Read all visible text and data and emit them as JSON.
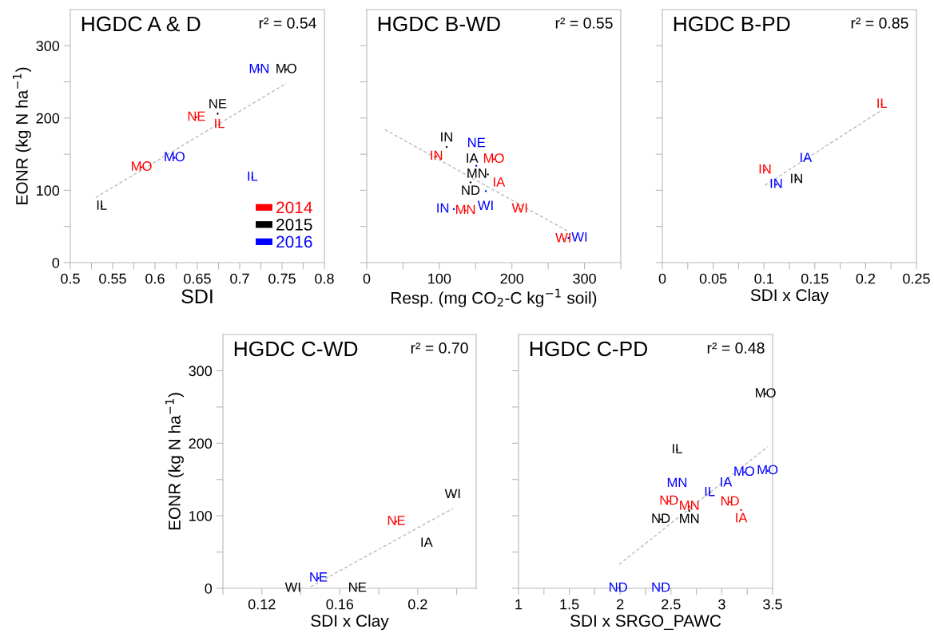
{
  "chart_data": [
    {
      "type": "scatter",
      "title": "HGDC A & D",
      "annotations": [
        "r² = 0.54"
      ],
      "xlabel": "SDI",
      "ylabel": "EONR (kg N ha$^{−1}$)",
      "xlim": [
        0.5,
        0.8
      ],
      "ylim": [
        0,
        350
      ],
      "xticks": [
        0.5,
        {
          "value": 0.525,
          "label": null
        },
        0.55,
        {
          "value": 0.575,
          "label": null
        },
        0.6,
        {
          "value": 0.625,
          "label": null
        },
        0.65,
        {
          "value": 0.675,
          "label": null
        },
        0.7,
        {
          "value": 0.725,
          "label": null
        },
        0.75,
        {
          "value": 0.775,
          "label": null
        },
        0.8
      ],
      "yticks": [
        0,
        {
          "value": 50,
          "label": null
        },
        100,
        {
          "value": 150,
          "label": null
        },
        200,
        {
          "value": 250,
          "label": null
        },
        300
      ],
      "marker": "none",
      "legend": "bottom right",
      "series": [
        {
          "name": "2014",
          "color": "#ff0000",
          "x": [
            0.649,
            0.676,
            0.584
          ],
          "values": [
            201,
            191,
            132
          ],
          "value_labels": [
            "NE",
            "IL",
            "MO"
          ]
        },
        {
          "name": "2015",
          "color": "#000000",
          "x": [
            0.755,
            0.674,
            0.537
          ],
          "values": [
            267,
            206,
            78
          ],
          "value_labels": [
            "MO",
            "NE",
            "IL"
          ]
        },
        {
          "name": "2016",
          "color": "#0000ff",
          "x": [
            0.723,
            0.623,
            0.715
          ],
          "values": [
            267,
            145,
            118
          ],
          "value_labels": [
            "MN",
            "MO",
            "IL"
          ]
        },
        {
          "type": "line",
          "color": "#bbbbbb",
          "line_style": "dashed",
          "x": [
            0.53,
            0.755
          ],
          "values": [
            90,
            248
          ]
        }
      ]
    },
    {
      "type": "scatter",
      "title": "HGDC B-WD",
      "annotations": [
        "r² = 0.55"
      ],
      "xlabel": "Resp. (mg CO$_{2}$-C kg$^{−1}$ soil)",
      "xlim": [
        0,
        350
      ],
      "ylim": [
        0,
        350
      ],
      "xticks": [
        0,
        {
          "value": 50,
          "label": null
        },
        100,
        {
          "value": 150,
          "label": null
        },
        200,
        {
          "value": 250,
          "label": null
        },
        300,
        {
          "value": 350,
          "label": null
        }
      ],
      "yticks": [
        0,
        50,
        100,
        150,
        200,
        250,
        300
      ],
      "tick_labels": "x",
      "marker": "none",
      "series": [
        {
          "color": "#ff0000",
          "x": [
            96,
            175,
            182,
            136,
            211,
            271
          ],
          "values": [
            147,
            143,
            110,
            72,
            74,
            33
          ],
          "value_labels": [
            "IN",
            "MO",
            "IA",
            "MN",
            "WI",
            "WI"
          ]
        },
        {
          "color": "#000000",
          "x": [
            110,
            145,
            167,
            143
          ],
          "values": [
            160,
            143,
            122,
            111
          ],
          "value_labels": [
            "IN",
            "IA",
            "MN",
            "ND"
          ]
        },
        {
          "color": "#0000ff",
          "x": [
            151,
            164,
            120,
            278
          ],
          "values": [
            134,
            99,
            74,
            34
          ],
          "value_labels": [
            "NE",
            "WI",
            "IN",
            "WI"
          ]
        },
        {
          "type": "line",
          "color": "#bbbbbb",
          "line_style": "dashed",
          "x": [
            25,
            278
          ],
          "values": [
            184,
            43
          ]
        }
      ]
    },
    {
      "type": "scatter",
      "title": "HGDC B-PD",
      "annotations": [
        "r² = 0.85"
      ],
      "xlabel": "SDI x Clay",
      "xlim": [
        0,
        0.25
      ],
      "ylim": [
        0,
        350
      ],
      "xticks": [
        0,
        {
          "value": 0.025,
          "label": null
        },
        0.05,
        {
          "value": 0.075,
          "label": null
        },
        0.1,
        {
          "value": 0.125,
          "label": null
        },
        0.15,
        {
          "value": 0.175,
          "label": null
        },
        0.2,
        {
          "value": 0.225,
          "label": null
        },
        0.25
      ],
      "yticks": [
        0,
        50,
        100,
        150,
        200,
        250,
        300
      ],
      "tick_labels": "x",
      "marker": "none",
      "series": [
        {
          "color": "#ff0000",
          "x": [
            0.216,
            0.101
          ],
          "values": [
            219,
            128
          ],
          "value_labels": [
            "IL",
            "IN"
          ]
        },
        {
          "color": "#000000",
          "x": [
            0.132
          ],
          "values": [
            115
          ],
          "value_labels": [
            "IN"
          ]
        },
        {
          "color": "#0000ff",
          "x": [
            0.141,
            0.112
          ],
          "values": [
            144,
            108
          ],
          "value_labels": [
            "IA",
            "IN"
          ]
        },
        {
          "type": "line",
          "color": "#bbbbbb",
          "line_style": "dashed",
          "x": [
            0.101,
            0.216
          ],
          "values": [
            107,
            211
          ]
        }
      ]
    },
    {
      "type": "scatter",
      "title": "HGDC C-WD",
      "annotations": [
        "r² = 0.70"
      ],
      "xlabel": "SDI x Clay",
      "ylabel": "EONR (kg N ha$^{−1}$)",
      "xlim": [
        0.1,
        0.23
      ],
      "ylim": [
        0,
        350
      ],
      "xticks": [
        {
          "value": 0.1,
          "label": null
        },
        0.12,
        {
          "value": 0.14,
          "label": null
        },
        0.16,
        {
          "value": 0.18,
          "label": null
        },
        0.2,
        {
          "value": 0.22,
          "label": null
        }
      ],
      "yticks": [
        0,
        {
          "value": 50,
          "label": null
        },
        100,
        {
          "value": 150,
          "label": null
        },
        200,
        {
          "value": 250,
          "label": null
        },
        300
      ],
      "marker": "none",
      "series": [
        {
          "color": "#ff0000",
          "x": [
            0.189
          ],
          "values": [
            92
          ],
          "value_labels": [
            "NE"
          ]
        },
        {
          "color": "#000000",
          "x": [
            0.218,
            0.2045,
            0.136,
            0.169
          ],
          "values": [
            129,
            62,
            0,
            0
          ],
          "value_labels": [
            "WI",
            "IA",
            "WI",
            "NE"
          ]
        },
        {
          "color": "#0000ff",
          "x": [
            0.149
          ],
          "values": [
            14
          ],
          "value_labels": [
            "NE"
          ]
        },
        {
          "type": "line",
          "color": "#bbbbbb",
          "line_style": "dashed",
          "x": [
            0.145,
            0.218
          ],
          "values": [
            2,
            110
          ]
        }
      ]
    },
    {
      "type": "scatter",
      "title": "HGDC C-PD",
      "annotations": [
        "r² = 0.48"
      ],
      "xlabel": "SDI x SRGO_PAWC",
      "xlim": [
        1,
        3.5
      ],
      "ylim": [
        0,
        350
      ],
      "xticks": [
        1,
        {
          "value": 1.25,
          "label": null
        },
        1.5,
        {
          "value": 1.75,
          "label": null
        },
        2,
        {
          "value": 2.25,
          "label": null
        },
        2.5,
        {
          "value": 2.75,
          "label": null
        },
        3,
        {
          "value": 3.25,
          "label": null
        },
        3.5
      ],
      "yticks": [
        0,
        50,
        100,
        150,
        200,
        250,
        300
      ],
      "tick_labels": "x",
      "marker": "none",
      "series": [
        {
          "color": "#ff0000",
          "x": [
            2.48,
            2.68,
            3.08,
            3.19
          ],
          "values": [
            120,
            113,
            119,
            108
          ],
          "value_labels": [
            "ND",
            "MN",
            "ND",
            "IA"
          ]
        },
        {
          "color": "#000000",
          "x": [
            3.43,
            2.56,
            2.68,
            2.4
          ],
          "values": [
            268,
            191,
            107,
            95
          ],
          "value_labels": [
            "MO",
            "IL",
            "MN",
            "ND"
          ]
        },
        {
          "color": "#0000ff",
          "x": [
            3.22,
            3.45,
            3.04,
            2.88,
            2.56,
            1.98,
            2.4
          ],
          "values": [
            160,
            162,
            145,
            132,
            123,
            0,
            0
          ],
          "value_labels": [
            "MO",
            "MO",
            "IA",
            "IL",
            "MN",
            "ND",
            "ND"
          ]
        },
        {
          "type": "line",
          "color": "#bbbbbb",
          "line_style": "dashed",
          "x": [
            1.99,
            3.45
          ],
          "values": [
            33,
            195
          ]
        }
      ]
    }
  ]
}
